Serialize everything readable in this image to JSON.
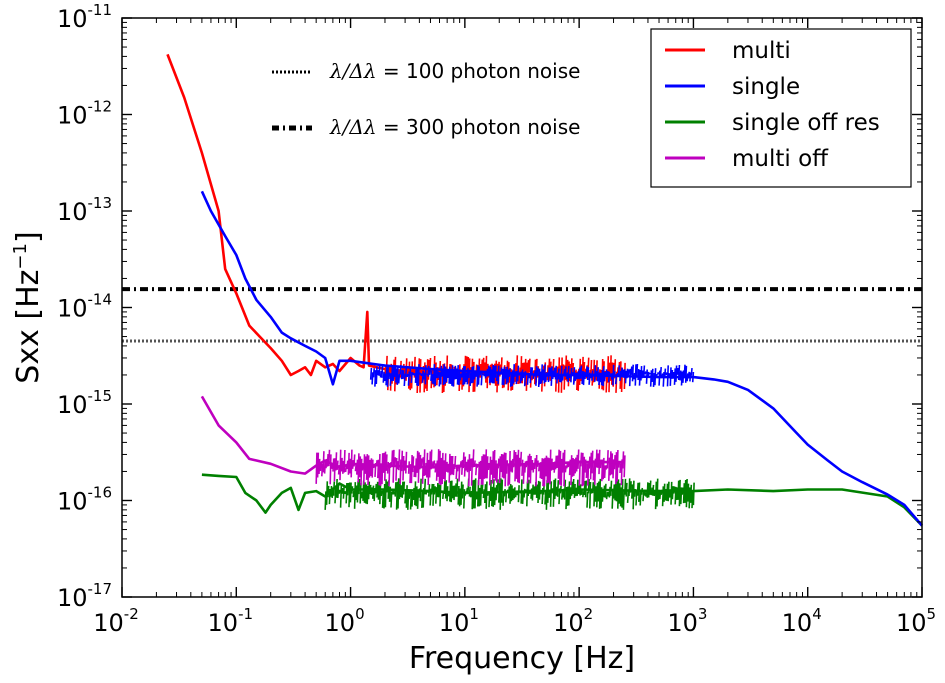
{
  "chart_data": {
    "type": "line",
    "xscale": "log",
    "yscale": "log",
    "xlim": [
      0.01,
      100000
    ],
    "ylim": [
      1e-17,
      1e-11
    ],
    "xlabel": "Frequency [Hz]",
    "ylabel_main": "Sxx [Hz",
    "ylabel_sup": "−1",
    "ylabel_close": "]",
    "x_ticks": [
      {
        "base": "10",
        "exp": "-2",
        "value": 0.01
      },
      {
        "base": "10",
        "exp": "-1",
        "value": 0.1
      },
      {
        "base": "10",
        "exp": "0",
        "value": 1
      },
      {
        "base": "10",
        "exp": "1",
        "value": 10
      },
      {
        "base": "10",
        "exp": "2",
        "value": 100
      },
      {
        "base": "10",
        "exp": "3",
        "value": 1000
      },
      {
        "base": "10",
        "exp": "4",
        "value": 10000
      },
      {
        "base": "10",
        "exp": "5",
        "value": 100000
      }
    ],
    "y_ticks": [
      {
        "base": "10",
        "exp": "-17",
        "value": 1e-17
      },
      {
        "base": "10",
        "exp": "-16",
        "value": 1e-16
      },
      {
        "base": "10",
        "exp": "-15",
        "value": 1e-15
      },
      {
        "base": "10",
        "exp": "-14",
        "value": 1e-14
      },
      {
        "base": "10",
        "exp": "-13",
        "value": 1e-13
      },
      {
        "base": "10",
        "exp": "-12",
        "value": 1e-12
      },
      {
        "base": "10",
        "exp": "-11",
        "value": 1e-11
      }
    ],
    "reference_lines": [
      {
        "lhs": "λ/Δλ",
        "eq": "= 100 photon noise",
        "y": 4.5e-15,
        "style": "dotted"
      },
      {
        "lhs": "λ/Δλ",
        "eq": "= 300 photon noise",
        "y": 1.55e-14,
        "style": "dashdot"
      }
    ],
    "legend_position": "top-right",
    "series": [
      {
        "name": "multi",
        "color": "#ff0000",
        "points": [
          [
            0.025,
            4.2e-12
          ],
          [
            0.035,
            1.5e-12
          ],
          [
            0.05,
            4e-13
          ],
          [
            0.07,
            1e-13
          ],
          [
            0.08,
            2.5e-14
          ],
          [
            0.1,
            1.4e-14
          ],
          [
            0.13,
            6.5e-15
          ],
          [
            0.16,
            5e-15
          ],
          [
            0.2,
            3.8e-15
          ],
          [
            0.25,
            2.8e-15
          ],
          [
            0.3,
            2e-15
          ],
          [
            0.35,
            2.2e-15
          ],
          [
            0.4,
            2.4e-15
          ],
          [
            0.45,
            2e-15
          ],
          [
            0.5,
            2.8e-15
          ],
          [
            0.6,
            2.4e-15
          ],
          [
            0.7,
            2.6e-15
          ],
          [
            0.8,
            2.2e-15
          ],
          [
            1.0,
            3e-15
          ],
          [
            1.2,
            2.5e-15
          ],
          [
            1.3,
            2.4e-15
          ],
          [
            1.4,
            9e-15
          ],
          [
            1.45,
            2.5e-15
          ],
          [
            1.7,
            2.4e-15
          ],
          [
            2.0,
            2.3e-15
          ],
          [
            3.0,
            2.2e-15
          ],
          [
            5.0,
            2.2e-15
          ],
          [
            7.0,
            2.1e-15
          ],
          [
            10,
            2.1e-15
          ],
          [
            20,
            2.1e-15
          ],
          [
            50,
            2e-15
          ],
          [
            100,
            2e-15
          ],
          [
            250,
            2e-15
          ]
        ],
        "noise_band": {
          "from": 2.0,
          "to": 250,
          "low": 1.3e-15,
          "high": 3.2e-15
        }
      },
      {
        "name": "single",
        "color": "#0000ff",
        "points": [
          [
            0.05,
            1.6e-13
          ],
          [
            0.06,
            1e-13
          ],
          [
            0.08,
            5.5e-14
          ],
          [
            0.1,
            3.5e-14
          ],
          [
            0.12,
            2e-14
          ],
          [
            0.15,
            1.2e-14
          ],
          [
            0.2,
            8e-15
          ],
          [
            0.25,
            5.5e-15
          ],
          [
            0.3,
            4.8e-15
          ],
          [
            0.4,
            4e-15
          ],
          [
            0.5,
            3.5e-15
          ],
          [
            0.6,
            3e-15
          ],
          [
            0.7,
            1.6e-15
          ],
          [
            0.8,
            2.8e-15
          ],
          [
            1.0,
            2.8e-15
          ],
          [
            2.0,
            2.5e-15
          ],
          [
            5.0,
            2.3e-15
          ],
          [
            10,
            2.2e-15
          ],
          [
            50,
            2e-15
          ],
          [
            100,
            2e-15
          ],
          [
            500,
            1.9e-15
          ],
          [
            1000,
            1.9e-15
          ],
          [
            1500,
            1.8e-15
          ],
          [
            2000,
            1.7e-15
          ],
          [
            3000,
            1.4e-15
          ],
          [
            5000,
            9e-16
          ],
          [
            8000,
            5e-16
          ],
          [
            10000,
            3.8e-16
          ],
          [
            15000,
            2.6e-16
          ],
          [
            20000,
            2e-16
          ],
          [
            30000,
            1.55e-16
          ],
          [
            50000,
            1.15e-16
          ],
          [
            70000,
            9e-17
          ],
          [
            100000,
            5.5e-17
          ]
        ],
        "noise_band": {
          "from": 1.5,
          "to": 1000,
          "low": 1.5e-15,
          "high": 2.6e-15
        }
      },
      {
        "name": "single off res",
        "color": "#008000",
        "points": [
          [
            0.05,
            1.85e-16
          ],
          [
            0.07,
            1.8e-16
          ],
          [
            0.1,
            1.75e-16
          ],
          [
            0.12,
            1.2e-16
          ],
          [
            0.15,
            1e-16
          ],
          [
            0.18,
            7.5e-17
          ],
          [
            0.2,
            9e-17
          ],
          [
            0.25,
            1.2e-16
          ],
          [
            0.3,
            1.35e-16
          ],
          [
            0.35,
            8e-17
          ],
          [
            0.4,
            1.2e-16
          ],
          [
            0.5,
            1.25e-16
          ],
          [
            0.6,
            1.1e-16
          ],
          [
            0.7,
            1.3e-16
          ],
          [
            0.8,
            1.5e-16
          ],
          [
            1.0,
            1.3e-16
          ],
          [
            2.0,
            1.3e-16
          ],
          [
            5.0,
            1.25e-16
          ],
          [
            10,
            1.2e-16
          ],
          [
            50,
            1.25e-16
          ],
          [
            100,
            1.3e-16
          ],
          [
            500,
            1.25e-16
          ],
          [
            1000,
            1.25e-16
          ],
          [
            2000,
            1.3e-16
          ],
          [
            5000,
            1.25e-16
          ],
          [
            10000,
            1.3e-16
          ],
          [
            20000,
            1.3e-16
          ],
          [
            50000,
            1.1e-16
          ],
          [
            70000,
            8.5e-17
          ],
          [
            100000,
            5.5e-17
          ]
        ],
        "noise_band": {
          "from": 0.6,
          "to": 1000,
          "low": 8e-17,
          "high": 1.7e-16
        }
      },
      {
        "name": "multi off",
        "color": "#bf00bf",
        "points": [
          [
            0.05,
            1.2e-15
          ],
          [
            0.07,
            6e-16
          ],
          [
            0.1,
            4e-16
          ],
          [
            0.13,
            2.7e-16
          ],
          [
            0.2,
            2.4e-16
          ],
          [
            0.3,
            2e-16
          ],
          [
            0.4,
            1.9e-16
          ],
          [
            0.5,
            2.3e-16
          ],
          [
            0.6,
            2.6e-16
          ],
          [
            0.8,
            2.2e-16
          ],
          [
            1.0,
            2.4e-16
          ],
          [
            2.0,
            2.3e-16
          ],
          [
            5.0,
            2.2e-16
          ],
          [
            10,
            2.3e-16
          ],
          [
            50,
            2.4e-16
          ],
          [
            100,
            2.5e-16
          ],
          [
            250,
            2.5e-16
          ]
        ],
        "noise_band": {
          "from": 0.5,
          "to": 250,
          "low": 1.4e-16,
          "high": 3.4e-16
        }
      }
    ]
  }
}
